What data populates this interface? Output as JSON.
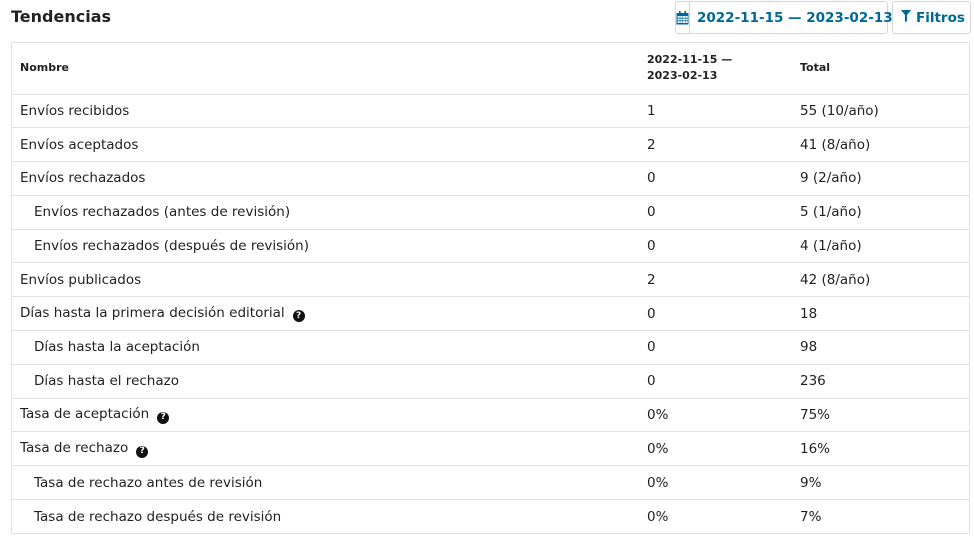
{
  "page": {
    "title": "Tendencias"
  },
  "toolbar": {
    "date_range_label": "2022-11-15 — 2023-02-13",
    "filters_label": "Filtros",
    "accent_color": "#006798"
  },
  "table": {
    "headers": {
      "name": "Nombre",
      "range_line1": "2022-11-15 —",
      "range_line2": "2023-02-13",
      "total": "Total"
    },
    "rows": [
      {
        "name": "Envíos recibidos",
        "range": "1",
        "total": "55 (10/año)",
        "indent": false,
        "help": false
      },
      {
        "name": "Envíos aceptados",
        "range": "2",
        "total": "41 (8/año)",
        "indent": false,
        "help": false
      },
      {
        "name": "Envíos rechazados",
        "range": "0",
        "total": "9 (2/año)",
        "indent": false,
        "help": false
      },
      {
        "name": "Envíos rechazados (antes de revisión)",
        "range": "0",
        "total": "5 (1/año)",
        "indent": true,
        "help": false
      },
      {
        "name": "Envíos rechazados (después de revisión)",
        "range": "0",
        "total": "4 (1/año)",
        "indent": true,
        "help": false
      },
      {
        "name": "Envíos publicados",
        "range": "2",
        "total": "42 (8/año)",
        "indent": false,
        "help": false
      },
      {
        "name": "Días hasta la primera decisión editorial",
        "range": "0",
        "total": "18",
        "indent": false,
        "help": true
      },
      {
        "name": "Días hasta la aceptación",
        "range": "0",
        "total": "98",
        "indent": true,
        "help": false
      },
      {
        "name": "Días hasta el rechazo",
        "range": "0",
        "total": "236",
        "indent": true,
        "help": false
      },
      {
        "name": "Tasa de aceptación",
        "range": "0%",
        "total": "75%",
        "indent": false,
        "help": true
      },
      {
        "name": "Tasa de rechazo",
        "range": "0%",
        "total": "16%",
        "indent": false,
        "help": true
      },
      {
        "name": "Tasa de rechazo antes de revisión",
        "range": "0%",
        "total": "9%",
        "indent": true,
        "help": false
      },
      {
        "name": "Tasa de rechazo después de revisión",
        "range": "0%",
        "total": "7%",
        "indent": true,
        "help": false
      }
    ]
  }
}
